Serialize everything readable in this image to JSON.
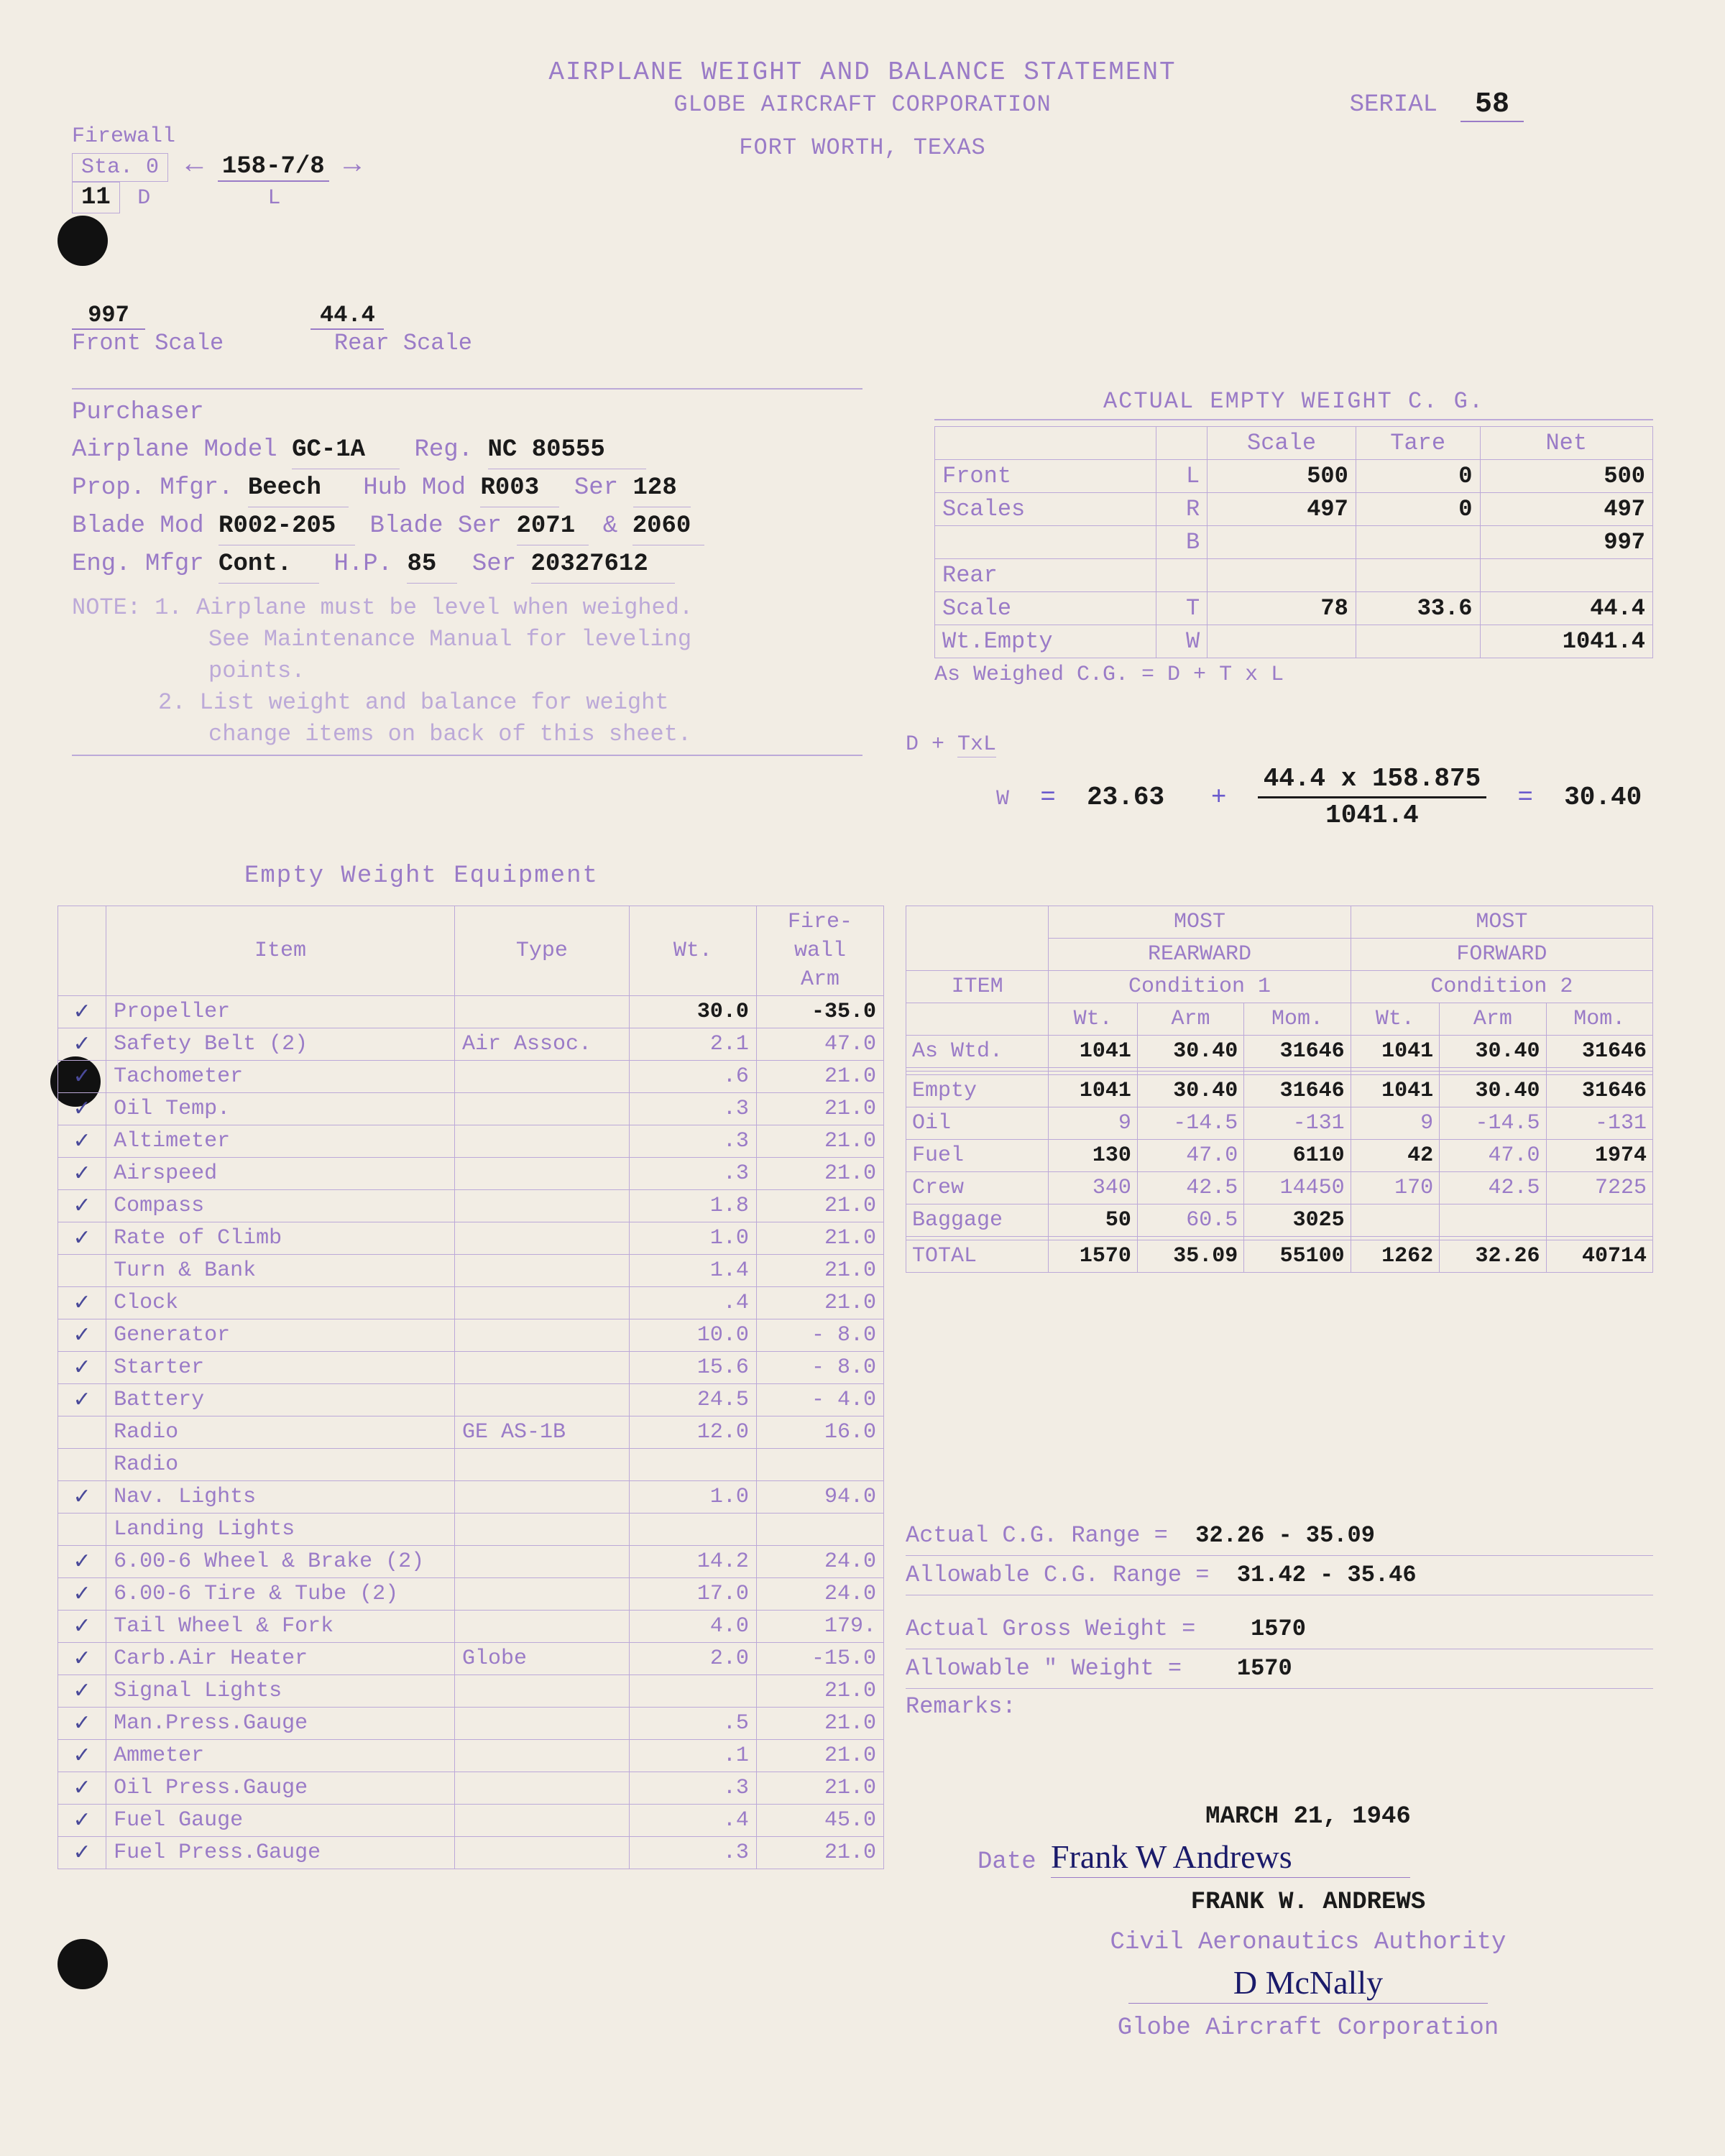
{
  "title": "AIRPLANE WEIGHT AND BALANCE STATEMENT",
  "company": "GLOBE AIRCRAFT CORPORATION",
  "location": "FORT WORTH, TEXAS",
  "serial_label": "SERIAL",
  "serial": "58",
  "firewall": {
    "label": "Firewall",
    "sta_label": "Sta. 0",
    "length_val": "158-7/8",
    "left_num": "11",
    "d_label": "D",
    "l_label": "L",
    "front_scale_val": "997",
    "rear_scale_val": "44.4",
    "front_scale_lbl": "Front Scale",
    "rear_scale_lbl": "Rear Scale"
  },
  "purchaser": {
    "purchaser_lbl": "Purchaser",
    "model_lbl": "Airplane Model",
    "model": "GC-1A",
    "reg_lbl": "Reg.",
    "reg": "NC 80555",
    "prop_mfr_lbl": "Prop. Mfgr.",
    "prop_mfr": "Beech",
    "hub_mod_lbl": "Hub Mod",
    "hub_mod": "R003",
    "hub_ser_lbl": "Ser",
    "hub_ser": "128",
    "blade_mod_lbl": "Blade Mod",
    "blade_mod": "R002-205",
    "blade_ser_lbl": "Blade Ser",
    "blade_ser1": "2071",
    "blade_amp": "&",
    "blade_ser2": "2060",
    "eng_mfr_lbl": "Eng. Mfgr",
    "eng_mfr": "Cont.",
    "hp_lbl": "H.P.",
    "hp": "85",
    "eng_ser_lbl": "Ser",
    "eng_ser": "20327612",
    "note1a": "NOTE: 1.  Airplane must be level when weighed.",
    "note1b": "See Maintenance Manual for leveling",
    "note1c": "points.",
    "note2a": "2.  List weight and balance for weight",
    "note2b": "change items on back of this sheet."
  },
  "empty_cg": {
    "header": "ACTUAL EMPTY WEIGHT C. G.",
    "cols": [
      "",
      "",
      "Scale",
      "Tare",
      "Net"
    ],
    "rows": [
      {
        "lab": "Front",
        "side": "L",
        "scale": "500",
        "tare": "0",
        "net": "500"
      },
      {
        "lab": "Scales",
        "side": "R",
        "scale": "497",
        "tare": "0",
        "net": "497"
      },
      {
        "lab": "",
        "side": "B",
        "scale": "",
        "tare": "",
        "net": "997"
      },
      {
        "lab": "Rear",
        "side": "",
        "scale": "",
        "tare": "",
        "net": ""
      },
      {
        "lab": "Scale",
        "side": "T",
        "scale": "78",
        "tare": "33.6",
        "net": "44.4"
      },
      {
        "lab": "Wt.Empty",
        "side": "W",
        "scale": "",
        "tare": "",
        "net": "1041.4"
      }
    ],
    "formula_lbl": "As Weighed C.G.  =  D + T x L",
    "formula_d_txl": "D + TxL",
    "d_val": "23.63",
    "num": "44.4 x 158.875",
    "den": "1041.4",
    "result": "30.40"
  },
  "equip": {
    "title": "Empty Weight Equipment",
    "cols": [
      "",
      "Item",
      "Type",
      "Wt.",
      "Fire-\nwall\nArm"
    ],
    "rows": [
      {
        "c": "✓",
        "item": "Propeller",
        "type": "",
        "wt": "30.0",
        "arm": "-35.0",
        "typed": true
      },
      {
        "c": "✓",
        "item": "Safety Belt (2)",
        "type": "Air Assoc.",
        "wt": "2.1",
        "arm": "47.0"
      },
      {
        "c": "✓",
        "item": "Tachometer",
        "type": "",
        "wt": ".6",
        "arm": "21.0"
      },
      {
        "c": "✓",
        "item": "Oil Temp.",
        "type": "",
        "wt": ".3",
        "arm": "21.0"
      },
      {
        "c": "✓",
        "item": "Altimeter",
        "type": "",
        "wt": ".3",
        "arm": "21.0"
      },
      {
        "c": "✓",
        "item": "Airspeed",
        "type": "",
        "wt": ".3",
        "arm": "21.0"
      },
      {
        "c": "✓",
        "item": "Compass",
        "type": "",
        "wt": "1.8",
        "arm": "21.0"
      },
      {
        "c": "✓",
        "item": "Rate of Climb",
        "type": "",
        "wt": "1.0",
        "arm": "21.0"
      },
      {
        "c": "",
        "item": "Turn & Bank",
        "type": "",
        "wt": "1.4",
        "arm": "21.0"
      },
      {
        "c": "✓",
        "item": "Clock",
        "type": "",
        "wt": ".4",
        "arm": "21.0"
      },
      {
        "c": "✓",
        "item": "Generator",
        "type": "",
        "wt": "10.0",
        "arm": "- 8.0"
      },
      {
        "c": "✓",
        "item": "Starter",
        "type": "",
        "wt": "15.6",
        "arm": "- 8.0"
      },
      {
        "c": "✓",
        "item": "Battery",
        "type": "",
        "wt": "24.5",
        "arm": "- 4.0"
      },
      {
        "c": "",
        "item": "Radio",
        "type": "GE AS-1B",
        "wt": "12.0",
        "arm": "16.0"
      },
      {
        "c": "",
        "item": "Radio",
        "type": "",
        "wt": "",
        "arm": ""
      },
      {
        "c": "✓",
        "item": "Nav. Lights",
        "type": "",
        "wt": "1.0",
        "arm": "94.0"
      },
      {
        "c": "",
        "item": "Landing Lights",
        "type": "",
        "wt": "",
        "arm": ""
      },
      {
        "c": "✓",
        "item": "6.00-6 Wheel & Brake (2)",
        "type": "",
        "wt": "14.2",
        "arm": "24.0"
      },
      {
        "c": "✓",
        "item": "6.00-6 Tire & Tube (2)",
        "type": "",
        "wt": "17.0",
        "arm": "24.0"
      },
      {
        "c": "✓",
        "item": "Tail Wheel & Fork",
        "type": "",
        "wt": "4.0",
        "arm": "179."
      },
      {
        "c": "✓",
        "item": "Carb.Air Heater",
        "type": "Globe",
        "wt": "2.0",
        "arm": "-15.0"
      },
      {
        "c": "✓",
        "item": "Signal Lights",
        "type": "",
        "wt": "",
        "arm": "21.0"
      },
      {
        "c": "✓",
        "item": "Man.Press.Gauge",
        "type": "",
        "wt": ".5",
        "arm": "21.0"
      },
      {
        "c": "✓",
        "item": "Ammeter",
        "type": "",
        "wt": ".1",
        "arm": "21.0"
      },
      {
        "c": "✓",
        "item": "Oil Press.Gauge",
        "type": "",
        "wt": ".3",
        "arm": "21.0"
      },
      {
        "c": "✓",
        "item": "Fuel Gauge",
        "type": "",
        "wt": ".4",
        "arm": "45.0"
      },
      {
        "c": "✓",
        "item": "Fuel Press.Gauge",
        "type": "",
        "wt": ".3",
        "arm": "21.0"
      }
    ]
  },
  "load": {
    "group1": "MOST",
    "group1b": "REARWARD",
    "group2": "MOST",
    "group2b": "FORWARD",
    "cond1": "Condition 1",
    "cond2": "Condition 2",
    "item_lbl": "ITEM",
    "sub_cols": [
      "Wt.",
      "Arm",
      "Mom."
    ],
    "rows": [
      {
        "lab": "As Wtd.",
        "w1": "1041",
        "a1": "30.40",
        "m1": "31646",
        "w2": "1041",
        "a2": "30.40",
        "m2": "31646",
        "typed": true
      },
      {
        "lab": "",
        "w1": "",
        "a1": "",
        "m1": "",
        "w2": "",
        "a2": "",
        "m2": ""
      },
      {
        "lab": "",
        "w1": "",
        "a1": "",
        "m1": "",
        "w2": "",
        "a2": "",
        "m2": ""
      },
      {
        "lab": "Empty",
        "w1": "1041",
        "a1": "30.40",
        "m1": "31646",
        "w2": "1041",
        "a2": "30.40",
        "m2": "31646",
        "typed": true
      },
      {
        "lab": "Oil",
        "w1": "9",
        "a1": "-14.5",
        "m1": "-131",
        "w2": "9",
        "a2": "-14.5",
        "m2": "-131"
      },
      {
        "lab": "Fuel",
        "w1": "130",
        "a1": "47.0",
        "m1": "6110",
        "w2": "42",
        "a2": "47.0",
        "m2": "1974",
        "typed_partial": true
      },
      {
        "lab": "Crew",
        "w1": "340",
        "a1": "42.5",
        "m1": "14450",
        "w2": "170",
        "a2": "42.5",
        "m2": "7225"
      },
      {
        "lab": "Baggage",
        "w1": "50",
        "a1": "60.5",
        "m1": "3025",
        "w2": "",
        "a2": "",
        "m2": "",
        "typed_partial": true
      },
      {
        "lab": "",
        "w1": "",
        "a1": "",
        "m1": "",
        "w2": "",
        "a2": "",
        "m2": ""
      },
      {
        "lab": "TOTAL",
        "w1": "1570",
        "a1": "35.09",
        "m1": "55100",
        "w2": "1262",
        "a2": "32.26",
        "m2": "40714",
        "typed": true
      }
    ]
  },
  "summary": {
    "actual_cg_lbl": "Actual C.G. Range     =",
    "actual_cg": "32.26 - 35.09",
    "allowable_cg_lbl": "Allowable C.G. Range =",
    "allowable_cg": "31.42 - 35.46",
    "actual_gw_lbl": "Actual Gross Weight   =",
    "actual_gw": "1570",
    "allowable_gw_lbl": "Allowable \"    Weight  =",
    "allowable_gw": "1570",
    "remarks_lbl": "Remarks:"
  },
  "sig": {
    "date_val": "MARCH 21, 1946",
    "date_lbl": "Date",
    "sig1_cursive": "Frank W Andrews",
    "name1": "FRANK W. ANDREWS",
    "auth1": "Civil Aeronautics Authority",
    "sig2_cursive": "D McNally",
    "auth2": "Globe Aircraft Corporation"
  }
}
